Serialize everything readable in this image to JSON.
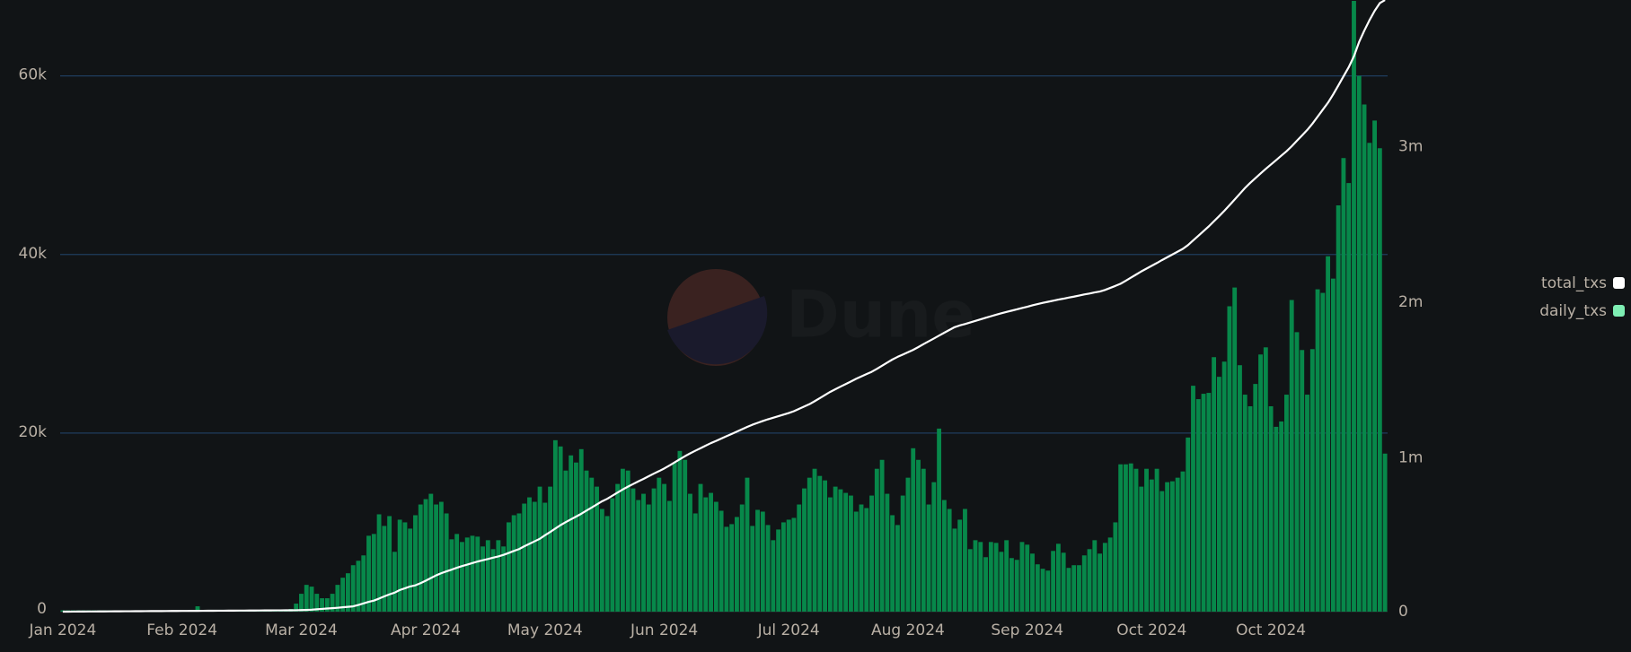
{
  "chart_data": {
    "type": "combo",
    "watermark": "Dune",
    "legend": "right",
    "grid": true,
    "ylim": [
      0,
      68500
    ],
    "yticks": [
      0,
      {
        "value": 20000,
        "label": "20k"
      },
      {
        "value": 40000,
        "label": "40k"
      },
      {
        "value": 60000,
        "label": "60k"
      }
    ],
    "y2lim": [
      0,
      3930000
    ],
    "y2ticks": [
      0,
      {
        "value": 1000000,
        "label": "1m"
      },
      {
        "value": 2000000,
        "label": "2m"
      },
      {
        "value": 3000000,
        "label": "3m"
      }
    ],
    "categories": [
      "Jan 2024",
      null,
      null,
      null,
      null,
      null,
      null,
      null,
      null,
      null,
      null,
      null,
      null,
      null,
      null,
      null,
      null,
      null,
      null,
      null,
      null,
      null,
      null,
      "Feb 2024",
      null,
      null,
      null,
      null,
      null,
      null,
      null,
      null,
      null,
      null,
      null,
      null,
      null,
      null,
      null,
      null,
      null,
      null,
      null,
      null,
      null,
      null,
      "Mar 2024",
      null,
      null,
      null,
      null,
      null,
      null,
      null,
      null,
      null,
      null,
      null,
      null,
      null,
      null,
      null,
      null,
      null,
      null,
      null,
      null,
      null,
      null,
      null,
      "Apr 2024",
      null,
      null,
      null,
      null,
      null,
      null,
      null,
      null,
      null,
      null,
      null,
      null,
      null,
      null,
      null,
      null,
      null,
      null,
      null,
      null,
      null,
      null,
      "May 2024",
      null,
      null,
      null,
      null,
      null,
      null,
      null,
      null,
      null,
      null,
      null,
      null,
      null,
      null,
      null,
      null,
      null,
      null,
      null,
      null,
      null,
      null,
      "Jun 2024",
      null,
      null,
      null,
      null,
      null,
      null,
      null,
      null,
      null,
      null,
      null,
      null,
      null,
      null,
      null,
      null,
      null,
      null,
      null,
      null,
      null,
      null,
      null,
      "Jul 2024",
      null,
      null,
      null,
      null,
      null,
      null,
      null,
      null,
      null,
      null,
      null,
      null,
      null,
      null,
      null,
      null,
      null,
      null,
      null,
      null,
      null,
      null,
      "Aug 2024",
      null,
      null,
      null,
      null,
      null,
      null,
      null,
      null,
      null,
      null,
      null,
      null,
      null,
      null,
      null,
      null,
      null,
      null,
      null,
      null,
      null,
      null,
      "Sep 2024",
      null,
      null,
      null,
      null,
      null,
      null,
      null,
      null,
      null,
      null,
      null,
      null,
      null,
      null,
      null,
      null,
      null,
      null,
      null,
      null,
      null,
      null,
      null,
      "Oct 2024",
      null,
      null,
      null,
      null,
      null,
      null,
      null,
      null,
      null,
      null,
      null,
      null,
      null,
      null,
      null,
      null,
      null,
      null,
      null,
      null,
      null,
      null,
      "Oct 2024",
      null,
      null,
      null,
      null,
      null,
      null,
      null,
      null,
      null,
      null,
      null,
      null,
      null,
      null,
      null,
      null,
      null,
      null,
      null,
      null,
      null,
      null
    ],
    "series": [
      {
        "name": "total_txs",
        "type": "line",
        "axis": "y2",
        "color": "#ffffff",
        "values": [
          0,
          200,
          400,
          600,
          800,
          1000,
          1200,
          1400,
          1600,
          1800,
          2000,
          2200,
          2400,
          2600,
          2800,
          3000,
          3200,
          3400,
          3600,
          3800,
          4000,
          4200,
          4400,
          4600,
          4800,
          5000,
          5200,
          5400,
          5600,
          5800,
          6000,
          6200,
          6400,
          6600,
          6800,
          7000,
          7200,
          7400,
          7600,
          7800,
          8000,
          8200,
          8400,
          8600,
          8800,
          9000,
          10000,
          11000,
          12500,
          15000,
          17500,
          20000,
          22500,
          25000,
          28000,
          31000,
          34000,
          43000,
          53000,
          63000,
          71000,
          84000,
          98000,
          111000,
          122000,
          139000,
          150000,
          162000,
          169000,
          183000,
          199000,
          216000,
          233000,
          247000,
          259000,
          270000,
          282000,
          293000,
          302000,
          312000,
          322000,
          330000,
          338000,
          347000,
          355000,
          365000,
          377000,
          390000,
          402000,
          420000,
          436000,
          452000,
          468000,
          491000,
          512000,
          534000,
          556000,
          575000,
          593000,
          611000,
          629000,
          649000,
          669000,
          689000,
          709000,
          725000,
          745000,
          765000,
          785000,
          803000,
          820000,
          837000,
          853000,
          870000,
          887000,
          903000,
          920000,
          939000,
          959000,
          979000,
          999000,
          1017000,
          1034000,
          1050000,
          1067000,
          1083000,
          1097000,
          1112000,
          1127000,
          1142000,
          1157000,
          1172000,
          1187000,
          1201000,
          1213000,
          1225000,
          1236000,
          1246000,
          1256000,
          1266000,
          1276000,
          1288000,
          1303000,
          1318000,
          1333000,
          1352000,
          1372000,
          1392000,
          1412000,
          1429000,
          1446000,
          1462000,
          1479000,
          1496000,
          1511000,
          1526000,
          1541000,
          1560000,
          1580000,
          1600000,
          1620000,
          1637000,
          1652000,
          1667000,
          1682000,
          1700000,
          1719000,
          1737000,
          1755000,
          1774000,
          1792000,
          1810000,
          1828000,
          1839000,
          1848000,
          1858000,
          1868000,
          1878000,
          1888000,
          1898000,
          1908000,
          1917000,
          1926000,
          1934000,
          1942000,
          1951000,
          1959000,
          1968000,
          1976000,
          1984000,
          1991000,
          1998000,
          2005000,
          2011000,
          2018000,
          2024000,
          2031000,
          2038000,
          2044000,
          2051000,
          2057000,
          2067000,
          2080000,
          2093000,
          2107000,
          2126000,
          2146000,
          2166000,
          2186000,
          2204000,
          2222000,
          2240000,
          2259000,
          2277000,
          2295000,
          2313000,
          2331000,
          2355000,
          2385000,
          2415000,
          2445000,
          2475000,
          2508000,
          2541000,
          2575000,
          2611000,
          2648000,
          2685000,
          2722000,
          2755000,
          2785000,
          2815000,
          2845000,
          2873000,
          2901000,
          2930000,
          2958000,
          2990000,
          3025000,
          3060000,
          3095000,
          3135000,
          3180000,
          3225000,
          3270000,
          3323000,
          3381000,
          3440000,
          3498000,
          3568000,
          3660000,
          3733000,
          3800000,
          3860000,
          3910000,
          3930000
        ]
      },
      {
        "name": "daily_txs",
        "type": "bar",
        "color": "#07884a",
        "legend_color": "#7eeeb3",
        "values": [
          150,
          150,
          150,
          150,
          150,
          150,
          150,
          150,
          150,
          150,
          150,
          150,
          150,
          150,
          150,
          150,
          150,
          150,
          150,
          150,
          150,
          150,
          150,
          150,
          150,
          150,
          600,
          150,
          150,
          150,
          150,
          150,
          150,
          150,
          150,
          150,
          150,
          150,
          150,
          150,
          150,
          150,
          150,
          150,
          300,
          900,
          2000,
          3000,
          2800,
          2000,
          1500,
          1500,
          2000,
          3000,
          3800,
          4300,
          5200,
          5700,
          6300,
          8500,
          8700,
          10900,
          9600,
          10700,
          6700,
          10300,
          10000,
          9300,
          10800,
          12000,
          12600,
          13200,
          12000,
          12300,
          11000,
          8100,
          8700,
          7800,
          8300,
          8500,
          8400,
          7300,
          8000,
          7000,
          8000,
          7300,
          10000,
          10800,
          11000,
          12100,
          12800,
          12300,
          14000,
          12200,
          14000,
          19200,
          18500,
          15800,
          17500,
          16700,
          18200,
          15800,
          15000,
          14000,
          11500,
          10700,
          12700,
          14300,
          16000,
          15800,
          13800,
          12500,
          13200,
          12000,
          13800,
          15000,
          14300,
          12400,
          16700,
          18000,
          17000,
          13200,
          11000,
          14300,
          12800,
          13300,
          12300,
          11300,
          9500,
          9800,
          10600,
          12000,
          15000,
          9600,
          11400,
          11200,
          9700,
          8000,
          9200,
          10000,
          10300,
          10500,
          12000,
          13800,
          15000,
          16000,
          15200,
          14700,
          12800,
          14000,
          13700,
          13300,
          13000,
          11200,
          12000,
          11600,
          13000,
          16000,
          17000,
          13200,
          10800,
          9700,
          13000,
          15000,
          18300,
          17000,
          16000,
          12000,
          14500,
          20500,
          12500,
          11500,
          9300,
          10300,
          11500,
          7000,
          8000,
          7800,
          6100,
          7800,
          7700,
          6700,
          8000,
          6000,
          5800,
          7800,
          7500,
          6500,
          5300,
          4800,
          4600,
          6800,
          7600,
          6600,
          4900,
          5200,
          5200,
          6300,
          7000,
          8000,
          6500,
          7700,
          8300,
          10000,
          16500,
          16500,
          16600,
          16000,
          14000,
          16000,
          14800,
          16000,
          13500,
          14500,
          14600,
          15000,
          15700,
          19500,
          25300,
          23800,
          24400,
          24500,
          28500,
          26300,
          28000,
          34200,
          36300,
          27600,
          24300,
          23000,
          25500,
          28800,
          29600,
          23000,
          20700,
          21300,
          24300,
          34900,
          31300,
          29300,
          24300,
          29400,
          36100,
          35700,
          39800,
          37300,
          45500,
          50800,
          48000,
          68400,
          60000,
          56800,
          52500,
          55000,
          51900,
          17700
        ]
      }
    ]
  }
}
